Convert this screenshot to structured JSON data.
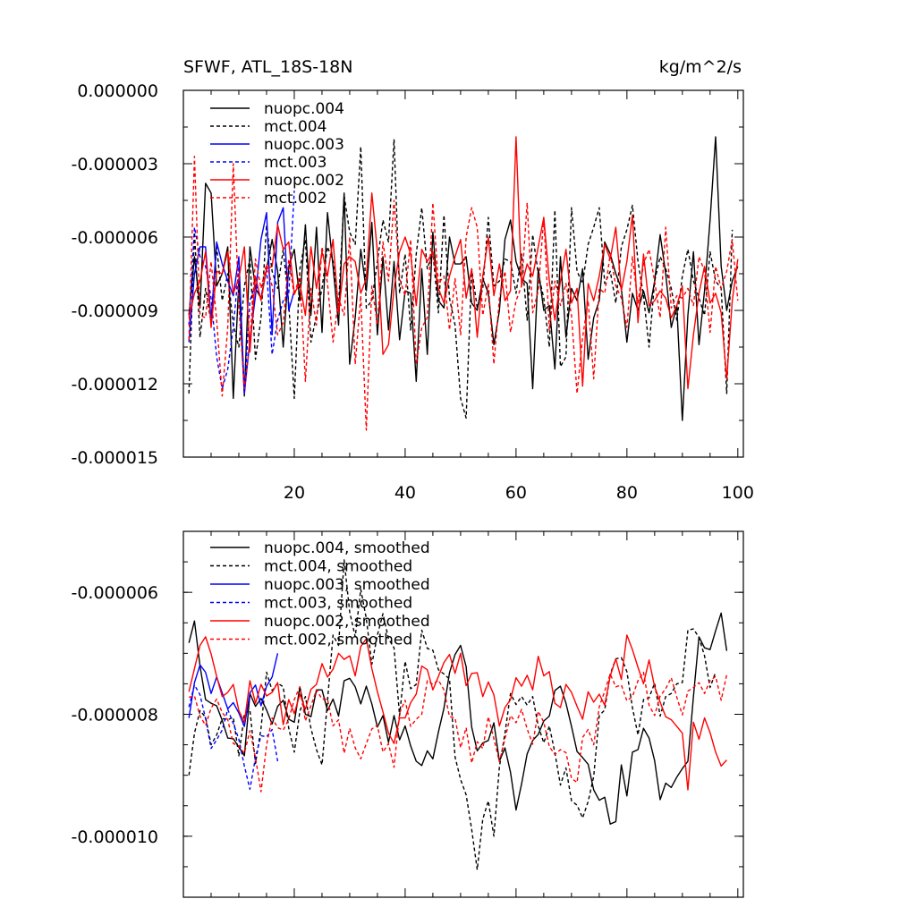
{
  "figure": {
    "title_left": "SFWF, ATL_18S-18N",
    "title_right": "kg/m^2/s"
  },
  "series_styles": [
    {
      "name": "nuopc.004",
      "color": "#000000",
      "dashed": false
    },
    {
      "name": "mct.004",
      "color": "#000000",
      "dashed": true
    },
    {
      "name": "nuopc.003",
      "color": "#0000ff",
      "dashed": false
    },
    {
      "name": "mct.003",
      "color": "#0000ff",
      "dashed": true
    },
    {
      "name": "nuopc.002",
      "color": "#ff0000",
      "dashed": false
    },
    {
      "name": "mct.002",
      "color": "#ff0000",
      "dashed": true
    }
  ],
  "chart_data": [
    {
      "type": "line",
      "title": "SFWF, ATL_18S-18N",
      "units": "kg/m^2/s",
      "xlabel": "",
      "ylabel": "",
      "xlim": [
        0,
        101
      ],
      "ylim": [
        -1.5e-05,
        0.0
      ],
      "xticks": [
        20,
        40,
        60,
        80,
        100
      ],
      "xtick_labels": [
        "20",
        "40",
        "60",
        "80",
        "100"
      ],
      "yticks": [
        0.0,
        -3e-06,
        -6e-06,
        -9e-06,
        -1.2e-05,
        -1.5e-05
      ],
      "ytick_labels": [
        "0.000000",
        "-0.000003",
        "-0.000006",
        "-0.000009",
        "-0.000012",
        "-0.000015"
      ],
      "legend_position": "top-left",
      "series": [
        {
          "name": "nuopc.004",
          "x_start": 1,
          "values": [
            -9.2,
            -6.8,
            -8.9,
            -3.8,
            -4.2,
            -8.0,
            -7.5,
            -6.4,
            -12.6,
            -7.8,
            -12.5,
            -6.4,
            -8.1,
            -8.5,
            -7.3,
            -6.1,
            -7.4,
            -10.5,
            -7.2,
            -6.5,
            -8.6,
            -5.5,
            -9.2,
            -5.6,
            -9.9,
            -5.0,
            -7.2,
            -9.6,
            -4.2,
            -11.2,
            -9.3,
            -6.5,
            -8.2,
            -5.4,
            -10.0,
            -6.8,
            -9.8,
            -7.0,
            -10.2,
            -8.2,
            -8.3,
            -11.9,
            -7.3,
            -10.8,
            -5.8,
            -8.6,
            -8.9,
            -6.0,
            -7.1,
            -7.1,
            -6.8,
            -8.7,
            -9.0,
            -7.7,
            -8.3,
            -10.4,
            -9.0,
            -6.1,
            -5.3,
            -7.0,
            -7.7,
            -7.9,
            -12.2,
            -7.3,
            -9.0,
            -8.8,
            -11.4,
            -6.8,
            -10.1,
            -8.1,
            -8.6,
            -7.3,
            -11.0,
            -9.3,
            -8.6,
            -6.2,
            -6.7,
            -7.5,
            -8.1,
            -10.3,
            -8.3,
            -9.0,
            -8.2,
            -9.1,
            -7.8,
            -5.9,
            -7.5,
            -9.7,
            -8.8,
            -13.5,
            -9.2,
            -6.6,
            -10.4,
            -8.2,
            -5.3,
            -1.9,
            -7.2,
            -9.0,
            -7.8,
            -7.2
          ],
          "note": "values in units of 1e-6"
        },
        {
          "name": "mct.004",
          "x_start": 1,
          "values": [
            -12.4,
            -5.8,
            -10.1,
            -8.1,
            -9.5,
            -6.4,
            -8.6,
            -7.5,
            -9.6,
            -10.5,
            -8.0,
            -6.9,
            -11.0,
            -9.3,
            -5.5,
            -7.4,
            -8.1,
            -6.5,
            -8.7,
            -12.6,
            -7.3,
            -6.1,
            -10.3,
            -9.2,
            -8.1,
            -6.4,
            -7.0,
            -8.8,
            -4.3,
            -5.8,
            -6.3,
            -2.3,
            -8.9,
            -8.6,
            -7.0,
            -5.3,
            -6.2,
            -2.0,
            -8.3,
            -6.7,
            -9.8,
            -6.7,
            -4.8,
            -7.3,
            -6.6,
            -9.1,
            -5.1,
            -8.5,
            -9.6,
            -12.6,
            -13.4,
            -7.3,
            -8.9,
            -8.1,
            -5.2,
            -8.0,
            -7.8,
            -6.9,
            -7.0,
            -8.3,
            -6.7,
            -9.4,
            -5.9,
            -7.5,
            -8.5,
            -10.5,
            -4.9,
            -11.3,
            -10.9,
            -4.8,
            -7.4,
            -7.9,
            -6.3,
            -5.6,
            -4.8,
            -7.9,
            -7.4,
            -8.7,
            -6.4,
            -5.7,
            -4.7,
            -7.0,
            -8.4,
            -10.5,
            -7.8,
            -6.8,
            -7.3,
            -8.1,
            -9.4,
            -7.6,
            -6.5,
            -7.8,
            -8.5,
            -9.2,
            -6.6,
            -7.8,
            -8.1,
            -12.4,
            -5.7
          ],
          "note": "values in units of 1e-6"
        },
        {
          "name": "nuopc.003",
          "x_start": 1,
          "values": [
            -10.3,
            -7.5,
            -6.4,
            -6.4,
            -9.4,
            -6.2,
            -7.1,
            -7.8,
            -8.4,
            -6.8,
            -12.4,
            -10.2,
            -8.4,
            -6.1,
            -5.0,
            -10.0,
            -5.4,
            -4.8,
            -9.0,
            -8.2
          ],
          "note": "values in units of 1e-6"
        },
        {
          "name": "mct.003",
          "x_start": 1,
          "values": [
            -9.6,
            -5.6,
            -6.8,
            -7.2,
            -8.5,
            -10.9,
            -12.2,
            -11.4,
            -9.7,
            -7.2,
            -12.4,
            -8.6,
            -7.9,
            -8.5,
            -7.3,
            -10.8,
            -9.4,
            -8.6,
            -8.3,
            -4.1
          ],
          "note": "values in units of 1e-6"
        },
        {
          "name": "nuopc.002",
          "x_start": 1,
          "values": [
            -9.3,
            -8.3,
            -7.8,
            -6.6,
            -9.7,
            -7.4,
            -7.5,
            -6.6,
            -8.3,
            -7.7,
            -6.4,
            -10.7,
            -7.6,
            -8.6,
            -7.3,
            -7.2,
            -5.5,
            -6.5,
            -6.2,
            -8.3,
            -7.9,
            -9.2,
            -6.4,
            -8.1,
            -6.6,
            -7.6,
            -6.1,
            -9.1,
            -7.1,
            -6.8,
            -7.0,
            -8.3,
            -7.7,
            -4.2,
            -6.6,
            -10.8,
            -10.4,
            -8.1,
            -6.6,
            -6.0,
            -6.7,
            -8.8,
            -6.5,
            -7.0,
            -6.6,
            -8.1,
            -8.7,
            -7.6,
            -6.8,
            -6.1,
            -8.5,
            -7.3,
            -10.1,
            -7.6,
            -6.0,
            -8.4,
            -7.1,
            -8.6,
            -8.2,
            -1.9,
            -8.0,
            -7.1,
            -7.6,
            -6.4,
            -5.2,
            -7.8,
            -9.4,
            -7.8,
            -6.5,
            -8.7,
            -8.1,
            -12.1,
            -7.9,
            -8.6,
            -7.6,
            -6.3,
            -6.9,
            -5.6,
            -8.2,
            -7.0,
            -5.1,
            -9.5,
            -6.7,
            -8.8,
            -8.6,
            -8.2,
            -8.5,
            -9.3,
            -8.8,
            -8.0,
            -12.2,
            -10.0,
            -8.3,
            -7.2,
            -8.7,
            -8.3,
            -9.1,
            -11.8,
            -8.6,
            -6.9
          ],
          "note": "values in units of 1e-6"
        },
        {
          "name": "mct.002",
          "x_start": 1,
          "values": [
            -10.2,
            -2.7,
            -9.2,
            -9.3,
            -7.0,
            -9.4,
            -12.5,
            -9.7,
            -3.0,
            -8.8,
            -12.2,
            -10.3,
            -6.9,
            -8.1,
            -7.1,
            -8.0,
            -10.0,
            -9.5,
            -6.9,
            -8.4,
            -7.5,
            -11.9,
            -8.1,
            -9.6,
            -6.4,
            -7.9,
            -10.3,
            -8.5,
            -9.2,
            -6.0,
            -11.2,
            -8.4,
            -13.9,
            -8.0,
            -9.6,
            -6.2,
            -7.8,
            -4.5,
            -7.7,
            -8.4,
            -6.1,
            -11.2,
            -9.7,
            -9.3,
            -4.6,
            -7.9,
            -7.6,
            -9.8,
            -7.7,
            -10.0,
            -6.0,
            -4.8,
            -5.6,
            -9.2,
            -7.9,
            -11.2,
            -8.5,
            -7.4,
            -9.9,
            -8.6,
            -8.0,
            -4.6,
            -9.1,
            -8.2,
            -5.2,
            -9.8,
            -7.8,
            -8.8,
            -7.9,
            -9.2,
            -12.4,
            -10.1,
            -8.6,
            -11.8,
            -8.1,
            -8.3,
            -6.7,
            -8.0,
            -8.5,
            -9.7,
            -6.8,
            -8.7,
            -7.1,
            -6.5,
            -7.8,
            -9.3,
            -5.6,
            -8.9,
            -8.4,
            -8.5,
            -8.1,
            -8.8,
            -6.8,
            -7.4,
            -9.9,
            -7.2,
            -8.1,
            -7.4,
            -6.1,
            -8.6
          ],
          "note": "values in units of 1e-6"
        }
      ]
    },
    {
      "type": "line",
      "title": "",
      "xlabel": "",
      "ylabel": "",
      "xlim": [
        0,
        101
      ],
      "ylim": [
        -1.1e-05,
        -5e-06
      ],
      "xticks": [
        20,
        40,
        60,
        80,
        100
      ],
      "xtick_labels": [],
      "yticks": [
        -6e-06,
        -8e-06,
        -1e-05
      ],
      "ytick_labels": [
        "-0.000006",
        "-0.000008",
        "-0.000010"
      ],
      "legend_position": "top-left",
      "series": [
        {
          "name": "nuopc.004, smoothed",
          "x_start": 1,
          "values": [
            -6.83,
            -6.47,
            -7.21,
            -7.76,
            -7.82,
            -7.86,
            -8.1,
            -8.39,
            -8.4,
            -8.54,
            -8.68,
            -7.66,
            -7.87,
            -7.74,
            -7.93,
            -8.16,
            -7.87,
            -7.77,
            -8.08,
            -8.13,
            -7.55,
            -8.0,
            -8.04,
            -7.6,
            -7.6,
            -7.94,
            -7.75,
            -8.03,
            -7.45,
            -7.41,
            -7.55,
            -7.83,
            -7.54,
            -7.83,
            -8.21,
            -8.02,
            -8.46,
            -8.02,
            -8.42,
            -8.19,
            -8.52,
            -8.77,
            -8.84,
            -8.6,
            -8.73,
            -8.29,
            -7.9,
            -7.32,
            -7.02,
            -6.87,
            -7.22,
            -8.21,
            -8.6,
            -8.47,
            -8.43,
            -8.14,
            -8.77,
            -8.55,
            -8.95,
            -9.57,
            -9.14,
            -8.65,
            -8.43,
            -8.33,
            -8.11,
            -8.03,
            -7.61,
            -7.54,
            -7.82,
            -8.2,
            -8.61,
            -8.71,
            -8.82,
            -9.24,
            -9.41,
            -9.36,
            -9.8,
            -9.76,
            -8.83,
            -9.34,
            -8.62,
            -8.58,
            -8.23,
            -8.39,
            -8.76,
            -9.4,
            -9.13,
            -9.2,
            -9.03,
            -8.89,
            -8.77,
            -7.71,
            -6.73,
            -6.91,
            -6.94,
            -6.63,
            -6.34,
            -6.96
          ],
          "note": "values in units of 1e-6"
        },
        {
          "name": "mct.004, smoothed",
          "x_start": 1,
          "values": [
            -9.0,
            -8.31,
            -7.94,
            -8.05,
            -8.5,
            -8.34,
            -8.07,
            -8.09,
            -8.05,
            -8.68,
            -8.0,
            -7.93,
            -8.81,
            -8.23,
            -7.31,
            -7.61,
            -7.49,
            -7.55,
            -8.23,
            -8.62,
            -7.95,
            -7.71,
            -8.23,
            -8.58,
            -8.83,
            -7.78,
            -6.7,
            -6.87,
            -5.47,
            -6.32,
            -6.73,
            -5.95,
            -6.43,
            -7.18,
            -6.7,
            -6.35,
            -6.76,
            -6.91,
            -8.02,
            -7.13,
            -7.58,
            -7.51,
            -6.62,
            -6.92,
            -6.95,
            -7.27,
            -7.34,
            -7.42,
            -8.7,
            -9.07,
            -9.32,
            -9.89,
            -10.55,
            -9.72,
            -9.42,
            -10.0,
            -8.86,
            -8.31,
            -7.66,
            -7.84,
            -7.71,
            -7.85,
            -7.71,
            -8.19,
            -8.47,
            -8.19,
            -8.63,
            -9.16,
            -8.88,
            -9.42,
            -9.49,
            -9.7,
            -9.43,
            -9.02,
            -8.02,
            -7.93,
            -7.34,
            -7.09,
            -7.07,
            -7.3,
            -7.89,
            -8.34,
            -7.76,
            -7.73,
            -7.49,
            -8.03,
            -7.71,
            -7.66,
            -7.5,
            -7.48,
            -6.62,
            -6.6,
            -6.74,
            -7.04,
            -7.56,
            -7.31
          ],
          "note": "values in units of 1e-6"
        },
        {
          "name": "nuopc.003, smoothed",
          "x_start": 1,
          "values": [
            -8.06,
            -7.48,
            -7.19,
            -7.31,
            -7.66,
            -7.39,
            -7.65,
            -7.91,
            -7.81,
            -7.98,
            -8.2,
            -7.65,
            -7.52,
            -7.86,
            -7.54,
            -7.39,
            -7.0
          ],
          "note": "values in units of 1e-6"
        },
        {
          "name": "mct.003, smoothed",
          "x_start": 1,
          "values": [
            -7.88,
            -7.52,
            -7.68,
            -8.07,
            -8.56,
            -8.42,
            -8.26,
            -7.92,
            -8.15,
            -8.41,
            -8.85,
            -9.23,
            -8.71,
            -8.35,
            -8.37,
            -8.25,
            -8.77
          ],
          "note": "values in units of 1e-6"
        },
        {
          "name": "nuopc.002, smoothed",
          "x_start": 1,
          "values": [
            -7.63,
            -7.25,
            -6.87,
            -6.73,
            -7.01,
            -7.38,
            -7.71,
            -7.64,
            -7.51,
            -7.94,
            -8.13,
            -7.45,
            -7.82,
            -7.51,
            -7.7,
            -7.64,
            -7.48,
            -8.17,
            -7.76,
            -7.99,
            -7.67,
            -7.92,
            -7.59,
            -7.51,
            -7.17,
            -7.39,
            -7.26,
            -7.0,
            -7.1,
            -7.04,
            -7.37,
            -6.89,
            -6.76,
            -7.25,
            -7.63,
            -7.96,
            -8.31,
            -8.48,
            -8.06,
            -8.06,
            -7.81,
            -7.67,
            -7.21,
            -7.27,
            -7.6,
            -7.38,
            -7.15,
            -7.02,
            -7.33,
            -7.0,
            -7.53,
            -7.33,
            -7.32,
            -7.71,
            -7.47,
            -7.68,
            -8.19,
            -7.89,
            -7.76,
            -7.4,
            -7.54,
            -7.36,
            -7.6,
            -7.05,
            -7.37,
            -7.3,
            -7.82,
            -7.89,
            -7.51,
            -7.64,
            -7.87,
            -8.08,
            -7.63,
            -7.8,
            -7.67,
            -7.85,
            -7.37,
            -7.09,
            -7.43,
            -6.7,
            -6.94,
            -7.23,
            -7.5,
            -7.11,
            -7.55,
            -7.8,
            -8.04,
            -8.09,
            -8.2,
            -8.31,
            -9.24,
            -8.13,
            -8.41,
            -8.06,
            -8.3,
            -8.62,
            -8.85,
            -8.75
          ],
          "note": "values in units of 1e-6"
        },
        {
          "name": "mct.002, smoothed",
          "x_start": 1,
          "values": [
            -7.72,
            -7.7,
            -8.03,
            -8.18,
            -7.9,
            -7.75,
            -7.97,
            -8.09,
            -8.48,
            -8.52,
            -8.64,
            -8.27,
            -8.71,
            -9.27,
            -8.5,
            -8.06,
            -8.22,
            -8.26,
            -8.08,
            -7.76,
            -7.55,
            -8.11,
            -7.86,
            -7.6,
            -7.75,
            -7.75,
            -8.19,
            -8.09,
            -8.64,
            -8.23,
            -8.55,
            -8.73,
            -8.48,
            -8.24,
            -8.18,
            -8.62,
            -8.48,
            -8.87,
            -7.98,
            -7.77,
            -8.2,
            -8.08,
            -8.0,
            -7.45,
            -7.51,
            -7.44,
            -7.6,
            -8.04,
            -8.06,
            -8.55,
            -8.22,
            -8.8,
            -8.45,
            -8.56,
            -8.04,
            -8.4,
            -8.78,
            -8.4,
            -8.02,
            -8.14,
            -7.92,
            -8.24,
            -8.49,
            -7.95,
            -8.13,
            -8.53,
            -8.66,
            -8.58,
            -8.63,
            -9.05,
            -9.12,
            -8.38,
            -8.25,
            -8.5,
            -7.88,
            -7.62,
            -7.34,
            -7.55,
            -7.52,
            -7.78,
            -7.71,
            -7.45,
            -7.31,
            -7.85,
            -8.02,
            -7.7,
            -7.58,
            -7.4,
            -7.72,
            -8.01,
            -7.62,
            -7.56,
            -7.48,
            -7.66,
            -7.45,
            -7.38,
            -7.77,
            -7.35
          ],
          "note": "values in units of 1e-6"
        }
      ]
    }
  ]
}
